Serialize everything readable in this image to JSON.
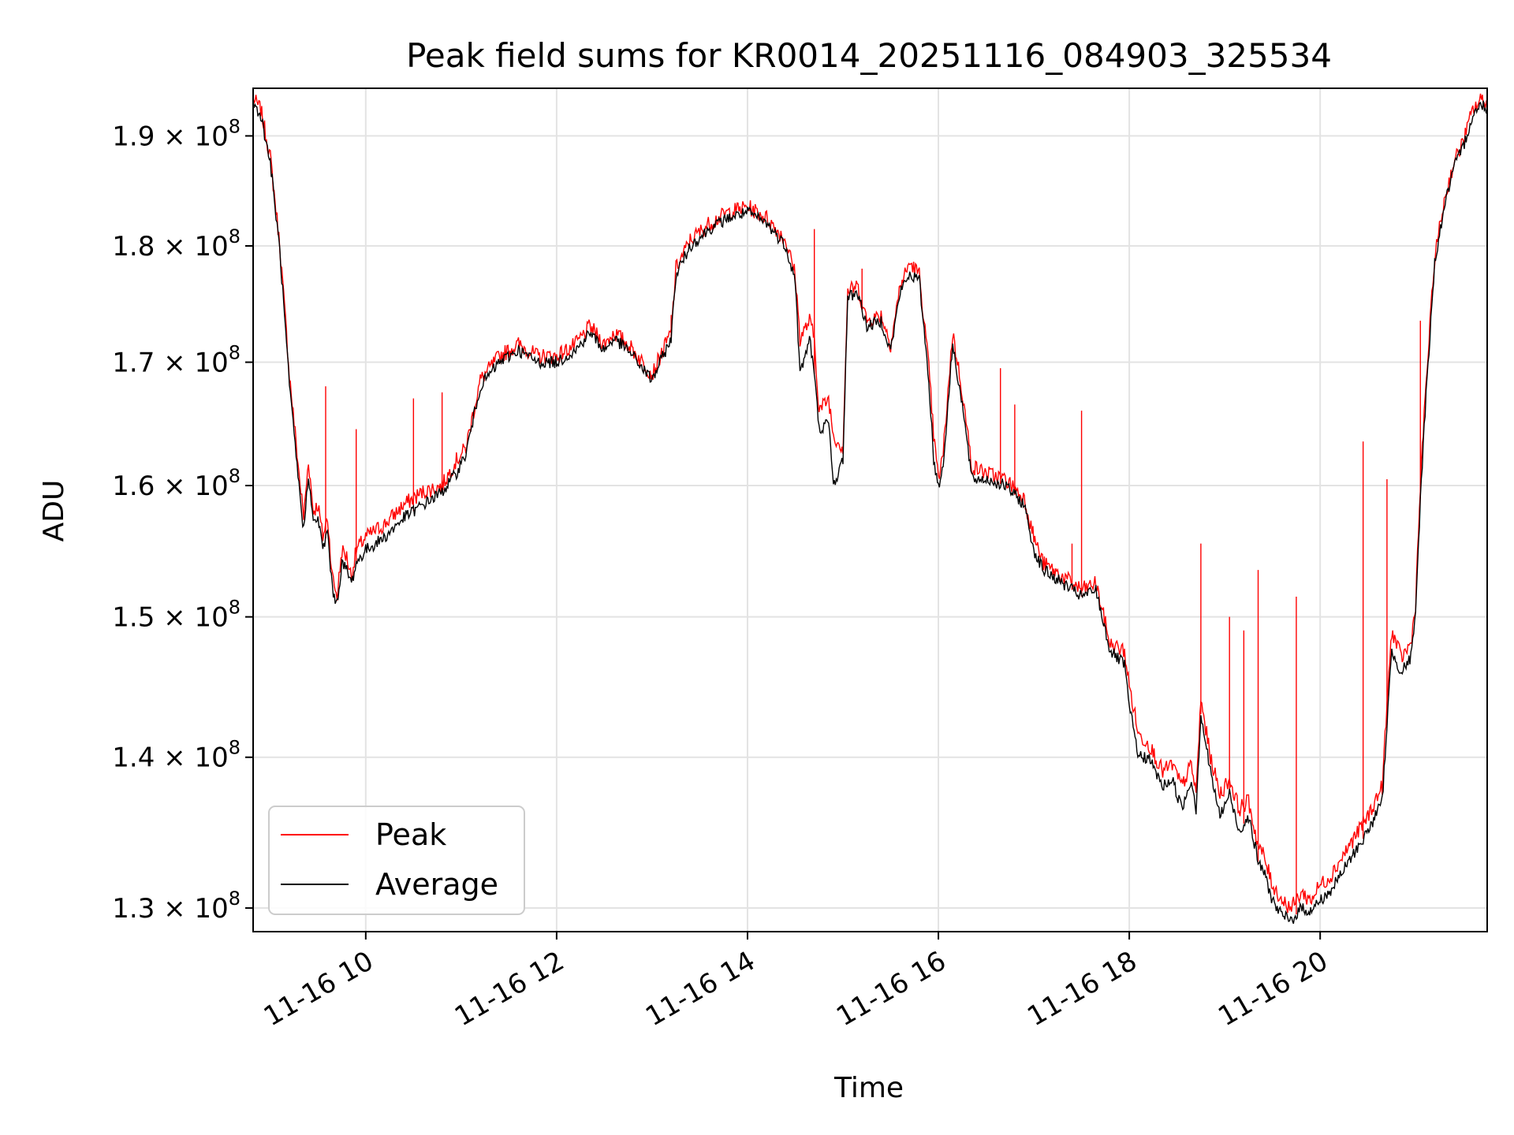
{
  "chart_data": {
    "type": "line",
    "title": "Peak field sums for KR0014_20251116_084903_325534",
    "xlabel": "Time",
    "ylabel": "ADU",
    "yscale": "log",
    "xlim": [
      8.82,
      21.75
    ],
    "ylim": [
      128500000,
      194500000
    ],
    "grid": true,
    "legend_position": "lower-left",
    "x_ticks": [
      {
        "value": 10,
        "label": "11-16 10"
      },
      {
        "value": 12,
        "label": "11-16 12"
      },
      {
        "value": 14,
        "label": "11-16 14"
      },
      {
        "value": 16,
        "label": "11-16 16"
      },
      {
        "value": 18,
        "label": "11-16 18"
      },
      {
        "value": 20,
        "label": "11-16 20"
      }
    ],
    "y_ticks": [
      {
        "value": 130000000,
        "mantissa": "1.3",
        "base": "× 10",
        "exp": "8"
      },
      {
        "value": 140000000,
        "mantissa": "1.4",
        "base": "× 10",
        "exp": "8"
      },
      {
        "value": 150000000,
        "mantissa": "1.5",
        "base": "× 10",
        "exp": "8"
      },
      {
        "value": 160000000,
        "mantissa": "1.6",
        "base": "× 10",
        "exp": "8"
      },
      {
        "value": 170000000,
        "mantissa": "1.7",
        "base": "× 10",
        "exp": "8"
      },
      {
        "value": 180000000,
        "mantissa": "1.8",
        "base": "× 10",
        "exp": "8"
      },
      {
        "value": 190000000,
        "mantissa": "1.9",
        "base": "× 10",
        "exp": "8"
      }
    ],
    "series": [
      {
        "name": "Peak",
        "color": "#ff0000",
        "x": [
          8.82,
          8.9,
          9.0,
          9.1,
          9.2,
          9.3,
          9.35,
          9.4,
          9.45,
          9.5,
          9.55,
          9.6,
          9.65,
          9.7,
          9.75,
          9.8,
          9.85,
          9.9,
          10.0,
          10.2,
          10.4,
          10.6,
          10.8,
          10.95,
          11.05,
          11.2,
          11.4,
          11.6,
          11.8,
          12.0,
          12.2,
          12.35,
          12.5,
          12.6,
          12.75,
          12.9,
          13.0,
          13.2,
          13.25,
          13.4,
          13.6,
          13.8,
          14.0,
          14.2,
          14.4,
          14.5,
          14.55,
          14.65,
          14.7,
          14.75,
          14.85,
          14.9,
          15.0,
          15.05,
          15.15,
          15.25,
          15.4,
          15.5,
          15.6,
          15.7,
          15.8,
          15.9,
          15.95,
          16.0,
          16.05,
          16.15,
          16.25,
          16.35,
          16.5,
          16.7,
          16.9,
          17.0,
          17.1,
          17.3,
          17.5,
          17.65,
          17.8,
          17.95,
          18.0,
          18.1,
          18.2,
          18.35,
          18.45,
          18.55,
          18.65,
          18.7,
          18.75,
          18.85,
          18.95,
          19.05,
          19.15,
          19.25,
          19.35,
          19.4,
          19.5,
          19.55,
          19.6,
          19.7,
          19.8,
          19.9,
          20.0,
          20.1,
          20.2,
          20.3,
          20.4,
          20.5,
          20.65,
          20.75,
          20.85,
          20.95,
          21.0,
          21.05,
          21.1,
          21.2,
          21.3,
          21.4,
          21.5,
          21.6,
          21.7,
          21.75
        ],
        "values": [
          193500000,
          192500000,
          188000000,
          180000000,
          169000000,
          161000000,
          157500000,
          162000000,
          158000000,
          158500000,
          156000000,
          157500000,
          153000000,
          151500000,
          155000000,
          154500000,
          153000000,
          155000000,
          156000000,
          157000000,
          158500000,
          159500000,
          160000000,
          162000000,
          163000000,
          168500000,
          170500000,
          171500000,
          170500000,
          170500000,
          171500000,
          173000000,
          171500000,
          172500000,
          171500000,
          170000000,
          169000000,
          172500000,
          178000000,
          180500000,
          182000000,
          183000000,
          183500000,
          182500000,
          180500000,
          177500000,
          172000000,
          173500000,
          172000000,
          166000000,
          167000000,
          164000000,
          163000000,
          176000000,
          176500000,
          173500000,
          174000000,
          171500000,
          176500000,
          178500000,
          177500000,
          169500000,
          164000000,
          160500000,
          162500000,
          172500000,
          167500000,
          161500000,
          161000000,
          160500000,
          159000000,
          156000000,
          154000000,
          153000000,
          152000000,
          152500000,
          148000000,
          147500000,
          145000000,
          141500000,
          141000000,
          139000000,
          139500000,
          138000000,
          139500000,
          137500000,
          144000000,
          140000000,
          137500000,
          138500000,
          136500000,
          137000000,
          134000000,
          133500000,
          131500000,
          131000000,
          130500000,
          130000000,
          131000000,
          130500000,
          131500000,
          132000000,
          133000000,
          134000000,
          135000000,
          136000000,
          138000000,
          149000000,
          147000000,
          148000000,
          151000000,
          160000000,
          167000000,
          179000000,
          184000000,
          187500000,
          189500000,
          192500000,
          193500000,
          193000000
        ],
        "spikes": [
          {
            "x": 9.58,
            "value": 168000000
          },
          {
            "x": 9.9,
            "value": 164500000
          },
          {
            "x": 10.5,
            "value": 167000000
          },
          {
            "x": 10.8,
            "value": 167500000
          },
          {
            "x": 13.2,
            "value": 174000000
          },
          {
            "x": 14.7,
            "value": 181500000
          },
          {
            "x": 15.2,
            "value": 178000000
          },
          {
            "x": 16.65,
            "value": 169500000
          },
          {
            "x": 16.8,
            "value": 166500000
          },
          {
            "x": 17.4,
            "value": 155500000
          },
          {
            "x": 17.5,
            "value": 166000000
          },
          {
            "x": 18.75,
            "value": 155500000
          },
          {
            "x": 19.05,
            "value": 150000000
          },
          {
            "x": 19.2,
            "value": 149000000
          },
          {
            "x": 19.35,
            "value": 153500000
          },
          {
            "x": 19.75,
            "value": 151500000
          },
          {
            "x": 20.45,
            "value": 163500000
          },
          {
            "x": 20.7,
            "value": 160500000
          },
          {
            "x": 21.05,
            "value": 173500000
          }
        ]
      },
      {
        "name": "Average",
        "color": "#000000",
        "x": [
          8.82,
          8.9,
          9.0,
          9.1,
          9.2,
          9.3,
          9.35,
          9.4,
          9.45,
          9.5,
          9.55,
          9.6,
          9.65,
          9.7,
          9.75,
          9.8,
          9.85,
          9.9,
          10.0,
          10.2,
          10.4,
          10.6,
          10.8,
          10.95,
          11.05,
          11.2,
          11.4,
          11.6,
          11.8,
          12.0,
          12.2,
          12.35,
          12.5,
          12.6,
          12.75,
          12.9,
          13.0,
          13.2,
          13.25,
          13.4,
          13.6,
          13.8,
          14.0,
          14.2,
          14.4,
          14.5,
          14.55,
          14.65,
          14.7,
          14.75,
          14.85,
          14.9,
          15.0,
          15.05,
          15.15,
          15.25,
          15.4,
          15.5,
          15.6,
          15.7,
          15.8,
          15.9,
          15.95,
          16.0,
          16.05,
          16.15,
          16.25,
          16.35,
          16.5,
          16.7,
          16.9,
          17.0,
          17.1,
          17.3,
          17.5,
          17.65,
          17.8,
          17.95,
          18.0,
          18.1,
          18.2,
          18.35,
          18.45,
          18.55,
          18.65,
          18.7,
          18.75,
          18.85,
          18.95,
          19.05,
          19.15,
          19.25,
          19.35,
          19.4,
          19.5,
          19.55,
          19.6,
          19.7,
          19.8,
          19.9,
          20.0,
          20.1,
          20.2,
          20.3,
          20.4,
          20.5,
          20.65,
          20.75,
          20.85,
          20.95,
          21.0,
          21.05,
          21.1,
          21.2,
          21.3,
          21.4,
          21.5,
          21.6,
          21.7,
          21.75
        ],
        "values": [
          193000000,
          192000000,
          187500000,
          179500000,
          168000000,
          160000000,
          156500000,
          161000000,
          157000000,
          157500000,
          155000000,
          156500000,
          152000000,
          151000000,
          154000000,
          153500000,
          152500000,
          154000000,
          155000000,
          156000000,
          157500000,
          158500000,
          159500000,
          161000000,
          162500000,
          168000000,
          170000000,
          171000000,
          170000000,
          170000000,
          171000000,
          172500000,
          171000000,
          172000000,
          171000000,
          169500000,
          168500000,
          172000000,
          177500000,
          180000000,
          181500000,
          182500000,
          183000000,
          182000000,
          180000000,
          177000000,
          169000000,
          172000000,
          169000000,
          164500000,
          165000000,
          160000000,
          162000000,
          175500000,
          176000000,
          173000000,
          173500000,
          171000000,
          176000000,
          177500000,
          177000000,
          168500000,
          162000000,
          160000000,
          161500000,
          171500000,
          166500000,
          160500000,
          160500000,
          160000000,
          158500000,
          155000000,
          153500000,
          152500000,
          151500000,
          152000000,
          147500000,
          146500000,
          143500000,
          140000000,
          140000000,
          138000000,
          138500000,
          136500000,
          138500000,
          136500000,
          143000000,
          139000000,
          136000000,
          137500000,
          135000000,
          136000000,
          133000000,
          132500000,
          130500000,
          130000000,
          129500000,
          129200000,
          130000000,
          129800000,
          130500000,
          131000000,
          132000000,
          133000000,
          134000000,
          135000000,
          137000000,
          147500000,
          146000000,
          147000000,
          150000000,
          159000000,
          166000000,
          178500000,
          183500000,
          187000000,
          189000000,
          192000000,
          193000000,
          192500000
        ]
      }
    ]
  }
}
